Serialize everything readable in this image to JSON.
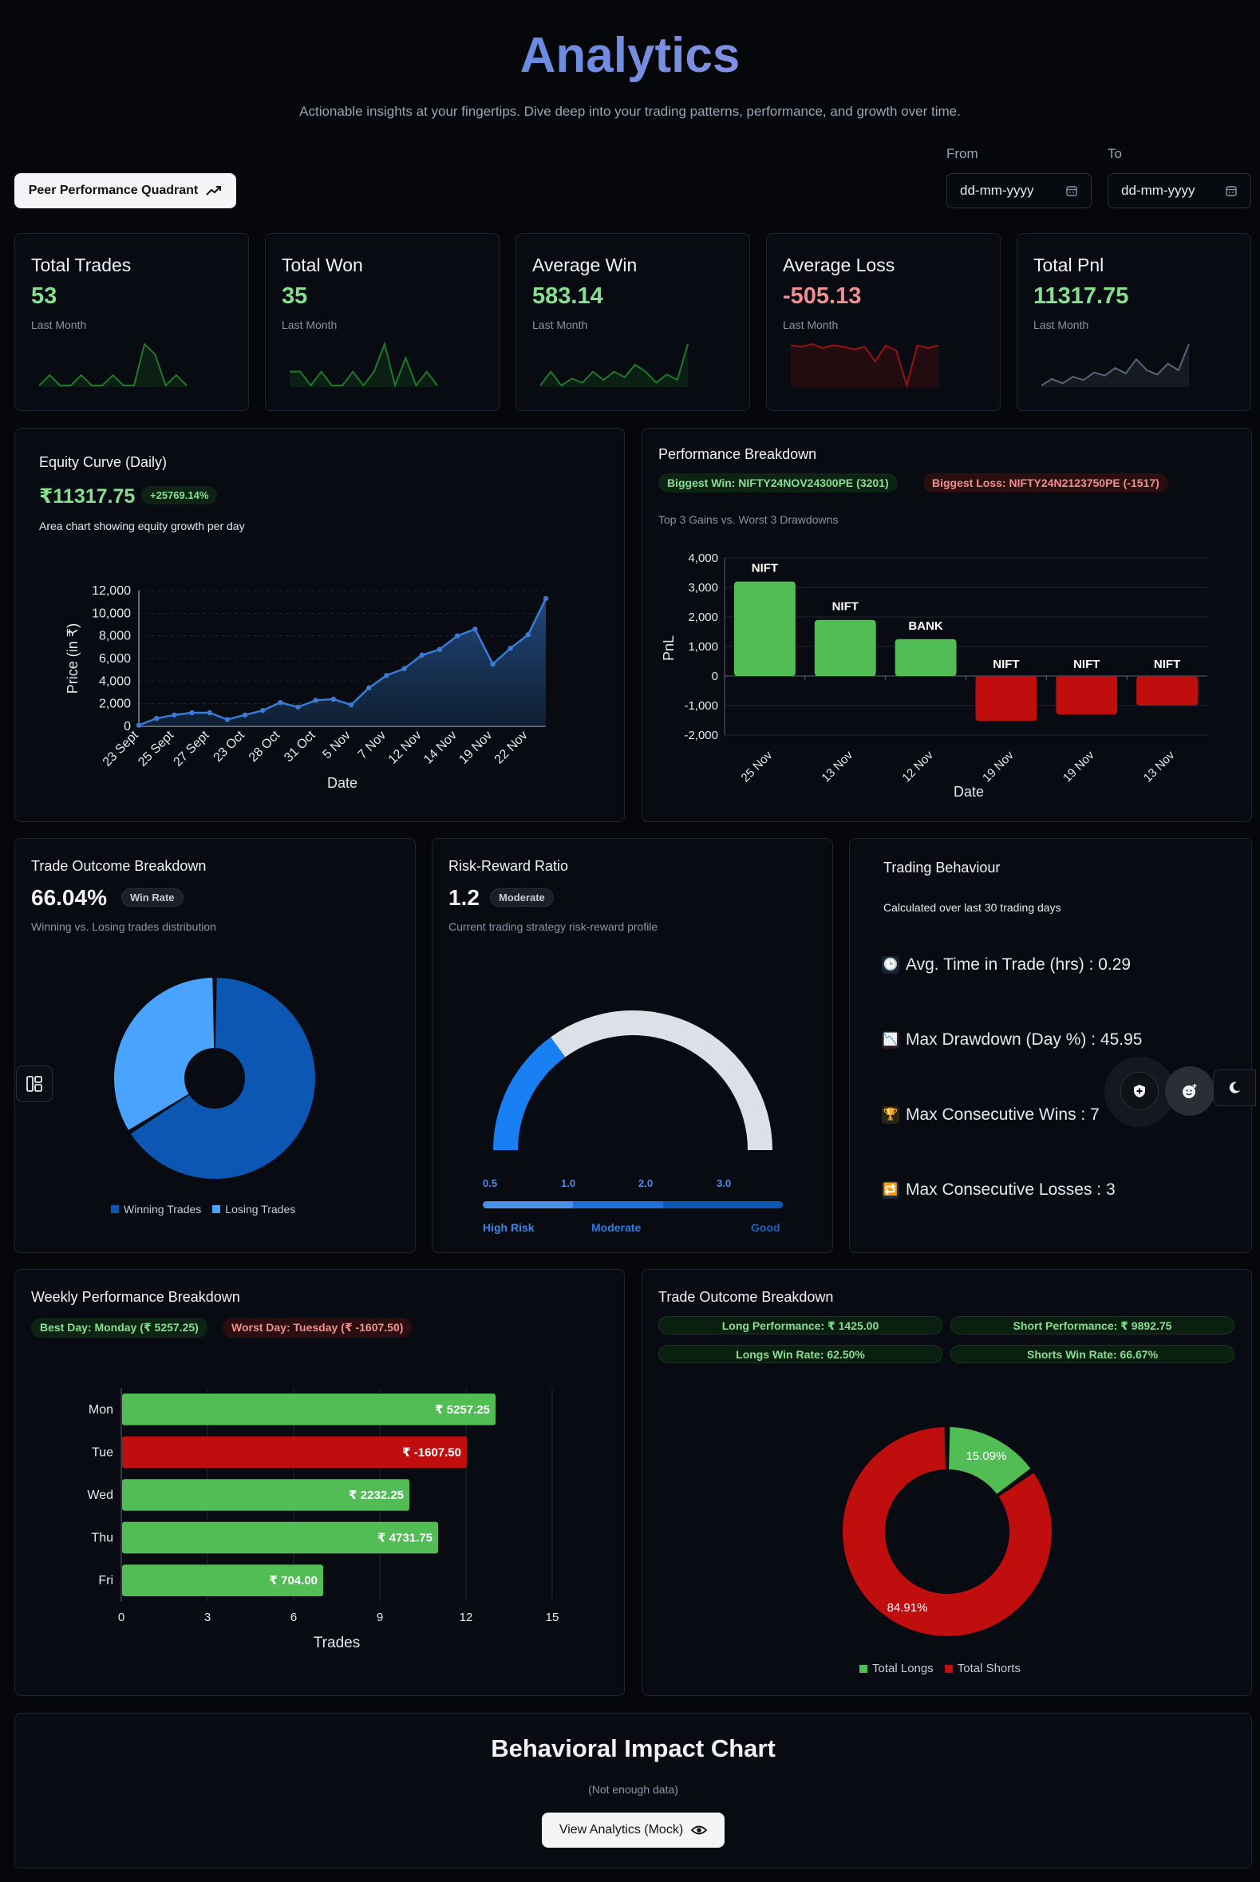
{
  "header": {
    "title": "Analytics",
    "subtitle": "Actionable insights at your fingertips. Dive deep into your trading patterns, performance, and growth over time."
  },
  "toolbar": {
    "peer_button": "Peer Performance Quadrant",
    "from_label": "From",
    "to_label": "To",
    "from_placeholder": "dd-mm-yyyy",
    "to_placeholder": "dd-mm-yyyy"
  },
  "stats": [
    {
      "title": "Total Trades",
      "value": "53",
      "sub": "Last Month",
      "color": "#86e08f"
    },
    {
      "title": "Total Won",
      "value": "35",
      "sub": "Last Month",
      "color": "#86e08f"
    },
    {
      "title": "Average Win",
      "value": "583.14",
      "sub": "Last Month",
      "color": "#86e08f"
    },
    {
      "title": "Average Loss",
      "value": "-505.13",
      "sub": "Last Month",
      "color": "#f08f8f"
    },
    {
      "title": "Total Pnl",
      "value": "11317.75",
      "sub": "Last Month",
      "color": "#86e08f"
    }
  ],
  "equity": {
    "title": "Equity Curve (Daily)",
    "value": "₹11317.75",
    "badge": "+25769.14%",
    "description": "Area chart showing equity growth per day"
  },
  "performance": {
    "title": "Performance Breakdown",
    "biggest_win": "Biggest Win: NIFTY24NOV24300PE (3201)",
    "biggest_loss": "Biggest Loss: NIFTY24N2123750PE (-1517)",
    "description": "Top 3 Gains vs. Worst 3 Drawdowns"
  },
  "outcome": {
    "title": "Trade Outcome Breakdown",
    "value": "66.04%",
    "badge": "Win Rate",
    "description": "Winning vs. Losing trades distribution",
    "legend_win": "Winning Trades",
    "legend_loss": "Losing Trades"
  },
  "risk": {
    "title": "Risk-Reward Ratio",
    "value": "1.2",
    "badge": "Moderate",
    "description": "Current trading strategy risk-reward profile",
    "ticks": [
      "0.5",
      "1.0",
      "2.0",
      "3.0"
    ],
    "labels": [
      "High Risk",
      "Moderate",
      "Good"
    ],
    "gauge_fill": 0.3
  },
  "behaviour": {
    "title": "Trading Behaviour",
    "description": "Calculated over last 30 trading days",
    "items": [
      {
        "icon": "clock-icon",
        "glyph": "🕒",
        "text": "Avg. Time in Trade (hrs) : 0.29"
      },
      {
        "icon": "chart-down-icon",
        "glyph": "📉",
        "text": "Max Drawdown (Day %) : 45.95"
      },
      {
        "icon": "trophy-icon",
        "glyph": "🏆",
        "text": "Max Consecutive Wins : 7"
      },
      {
        "icon": "repeat-icon",
        "glyph": "🔁",
        "text": "Max Consecutive Losses : 3"
      }
    ]
  },
  "weekly": {
    "title": "Weekly Performance Breakdown",
    "best": "Best Day: Monday (₹ 5257.25)",
    "worst": "Worst Day: Tuesday (₹ -1607.50)"
  },
  "longshort": {
    "title": "Trade Outcome Breakdown",
    "long_perf": "Long Performance: ₹ 1425.00",
    "short_perf": "Short Performance: ₹ 9892.75",
    "long_win": "Longs Win Rate: 62.50%",
    "short_win": "Shorts Win Rate: 66.67%",
    "legend_long": "Total Longs",
    "legend_short": "Total Shorts"
  },
  "behavioral_impact": {
    "title": "Behavioral Impact Chart",
    "note": "(Not enough data)",
    "button": "View Analytics (Mock)"
  },
  "colors": {
    "green": "#52bd55",
    "red": "#c00d0d",
    "blue": "#2f7de0",
    "dark_blue": "#0b57b3",
    "light_blue": "#4aa3ff"
  },
  "chart_data": [
    {
      "type": "line",
      "name": "stat-total-trades",
      "values": [
        1,
        2,
        1,
        1,
        2,
        1,
        1,
        2,
        1,
        1,
        5,
        4,
        1,
        2,
        1
      ],
      "color": "#1e7a2a"
    },
    {
      "type": "line",
      "name": "stat-total-won",
      "values": [
        2,
        2,
        1,
        2,
        1,
        1,
        2,
        1,
        2,
        4,
        1,
        3,
        1,
        2,
        1
      ],
      "color": "#1e7a2a"
    },
    {
      "type": "line",
      "name": "stat-average-win",
      "values": [
        1,
        2,
        1,
        1.5,
        1.2,
        2,
        1.4,
        2,
        1.6,
        2.5,
        2,
        1.2,
        1.8,
        1.4,
        4
      ],
      "color": "#1e7a2a"
    },
    {
      "type": "line",
      "name": "stat-average-loss",
      "values": [
        0,
        -0.1,
        0.1,
        -0.2,
        0,
        -0.1,
        -0.3,
        -0.1,
        -1.2,
        0,
        -0.4,
        -3,
        0,
        -0.2,
        0
      ],
      "color": "#9b1313"
    },
    {
      "type": "line",
      "name": "stat-total-pnl",
      "values": [
        1,
        1.6,
        1.2,
        1.8,
        1.5,
        2.2,
        1.9,
        2.6,
        2.1,
        3.4,
        2.4,
        2.0,
        3.0,
        2.4,
        4.8
      ],
      "color": "#56657a"
    },
    {
      "type": "area",
      "name": "equity-curve",
      "xlabel": "Date",
      "ylabel": "Price (in ₹)",
      "ylim": [
        0,
        12000
      ],
      "yticks": [
        0,
        2000,
        4000,
        6000,
        8000,
        10000,
        12000
      ],
      "x": [
        "23 Sept",
        "24 Sept",
        "25 Sept",
        "26 Sept",
        "27 Sept",
        "30 Sept",
        "23 Oct",
        "25 Oct",
        "28 Oct",
        "30 Oct",
        "31 Oct",
        "4 Nov",
        "5 Nov",
        "6 Nov",
        "7 Nov",
        "8 Nov",
        "12 Nov",
        "13 Nov",
        "14 Nov",
        "18 Nov",
        "19 Nov",
        "20 Nov",
        "22 Nov",
        "25 Nov"
      ],
      "xtick_labels": [
        "23 Sept",
        "25 Sept",
        "27 Sept",
        "23 Oct",
        "28 Oct",
        "31 Oct",
        "5 Nov",
        "7 Nov",
        "12 Nov",
        "14 Nov",
        "19 Nov",
        "22 Nov"
      ],
      "values": [
        100,
        700,
        1000,
        1200,
        1200,
        600,
        1000,
        1400,
        2100,
        1700,
        2300,
        2400,
        1900,
        3400,
        4500,
        5100,
        6300,
        6800,
        8000,
        8600,
        5500,
        6900,
        8100,
        11300
      ],
      "color": "#3a7bd5"
    },
    {
      "type": "bar",
      "name": "performance-breakdown",
      "xlabel": "Date",
      "ylabel": "PnL",
      "ylim": [
        -2000,
        4000
      ],
      "yticks": [
        -2000,
        -1000,
        0,
        1000,
        2000,
        3000,
        4000
      ],
      "categories": [
        "25 Nov",
        "13 Nov",
        "12 Nov",
        "19 Nov",
        "19 Nov",
        "13 Nov"
      ],
      "values": [
        3201,
        1900,
        1250,
        -1517,
        -1300,
        -1000
      ],
      "bar_labels": [
        "NIFT",
        "NIFT",
        "BANK",
        "NIFT",
        "NIFT",
        "NIFT"
      ]
    },
    {
      "type": "pie",
      "name": "win-loss-donut",
      "labels": [
        "Winning Trades",
        "Losing Trades"
      ],
      "values": [
        66.04,
        33.96
      ],
      "colors": [
        "#0b57b3",
        "#4aa3ff"
      ]
    },
    {
      "type": "bar",
      "name": "weekly-performance",
      "orientation": "horizontal",
      "xlabel": "Trades",
      "xlim": [
        0,
        15
      ],
      "xticks": [
        0,
        3,
        6,
        9,
        12,
        15
      ],
      "categories": [
        "Mon",
        "Tue",
        "Wed",
        "Thu",
        "Fri"
      ],
      "values": [
        13,
        12,
        10,
        11,
        7
      ],
      "bar_labels": [
        "₹ 5257.25",
        "₹ -1607.50",
        "₹ 2232.25",
        "₹ 4731.75",
        "₹ 704.00"
      ],
      "bar_colors": [
        "#52bd55",
        "#c00d0d",
        "#52bd55",
        "#52bd55",
        "#52bd55"
      ]
    },
    {
      "type": "pie",
      "name": "long-short-donut",
      "labels": [
        "Total Longs",
        "Total Shorts"
      ],
      "values": [
        15.09,
        84.91
      ],
      "value_labels": [
        "15.09%",
        "84.91%"
      ],
      "colors": [
        "#52bd55",
        "#c00d0d"
      ]
    }
  ]
}
